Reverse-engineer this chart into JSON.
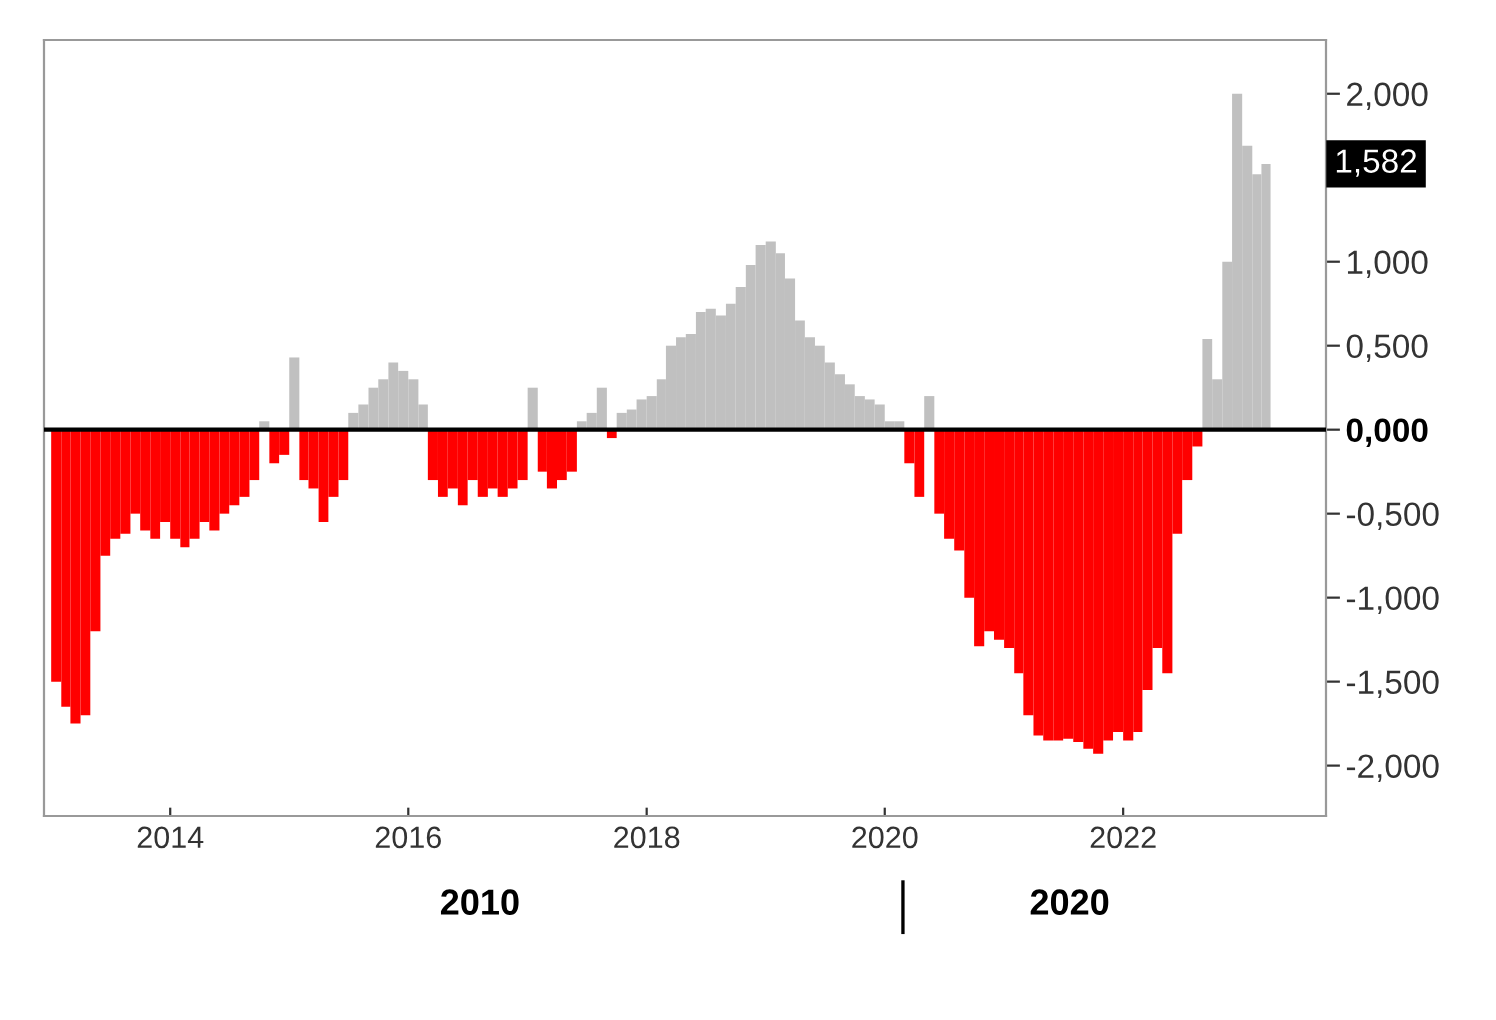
{
  "chart_data": {
    "type": "bar",
    "x": [
      "2013-01",
      "2013-02",
      "2013-03",
      "2013-04",
      "2013-05",
      "2013-06",
      "2013-07",
      "2013-08",
      "2013-09",
      "2013-10",
      "2013-11",
      "2013-12",
      "2014-01",
      "2014-02",
      "2014-03",
      "2014-04",
      "2014-05",
      "2014-06",
      "2014-07",
      "2014-08",
      "2014-09",
      "2014-10",
      "2014-11",
      "2014-12",
      "2015-01",
      "2015-02",
      "2015-03",
      "2015-04",
      "2015-05",
      "2015-06",
      "2015-07",
      "2015-08",
      "2015-09",
      "2015-10",
      "2015-11",
      "2015-12",
      "2016-01",
      "2016-02",
      "2016-03",
      "2016-04",
      "2016-05",
      "2016-06",
      "2016-07",
      "2016-08",
      "2016-09",
      "2016-10",
      "2016-11",
      "2016-12",
      "2017-01",
      "2017-02",
      "2017-03",
      "2017-04",
      "2017-05",
      "2017-06",
      "2017-07",
      "2017-08",
      "2017-09",
      "2017-10",
      "2017-11",
      "2017-12",
      "2018-01",
      "2018-02",
      "2018-03",
      "2018-04",
      "2018-05",
      "2018-06",
      "2018-07",
      "2018-08",
      "2018-09",
      "2018-10",
      "2018-11",
      "2018-12",
      "2019-01",
      "2019-02",
      "2019-03",
      "2019-04",
      "2019-05",
      "2019-06",
      "2019-07",
      "2019-08",
      "2019-09",
      "2019-10",
      "2019-11",
      "2019-12",
      "2020-01",
      "2020-02",
      "2020-03",
      "2020-04",
      "2020-05",
      "2020-06",
      "2020-07",
      "2020-08",
      "2020-09",
      "2020-10",
      "2020-11",
      "2020-12",
      "2021-01",
      "2021-02",
      "2021-03",
      "2021-04",
      "2021-05",
      "2021-06",
      "2021-07",
      "2021-08",
      "2021-09",
      "2021-10",
      "2021-11",
      "2021-12",
      "2022-01",
      "2022-02",
      "2022-03",
      "2022-04",
      "2022-05",
      "2022-06",
      "2022-07",
      "2022-08",
      "2022-09",
      "2022-10",
      "2022-11",
      "2022-12",
      "2023-01",
      "2023-02",
      "2023-03"
    ],
    "values": [
      -1.5,
      -1.65,
      -1.75,
      -1.7,
      -1.2,
      -0.75,
      -0.65,
      -0.62,
      -0.5,
      -0.6,
      -0.65,
      -0.55,
      -0.65,
      -0.7,
      -0.65,
      -0.55,
      -0.6,
      -0.5,
      -0.45,
      -0.4,
      -0.3,
      0.05,
      -0.2,
      -0.15,
      0.43,
      -0.3,
      -0.35,
      -0.55,
      -0.4,
      -0.3,
      0.1,
      0.15,
      0.25,
      0.3,
      0.4,
      0.35,
      0.3,
      0.15,
      -0.3,
      -0.4,
      -0.35,
      -0.45,
      -0.3,
      -0.4,
      -0.35,
      -0.4,
      -0.35,
      -0.3,
      0.25,
      -0.25,
      -0.35,
      -0.3,
      -0.25,
      0.05,
      0.1,
      0.25,
      -0.05,
      0.1,
      0.12,
      0.18,
      0.2,
      0.3,
      0.5,
      0.55,
      0.57,
      0.7,
      0.72,
      0.68,
      0.75,
      0.85,
      0.98,
      1.1,
      1.12,
      1.05,
      0.9,
      0.65,
      0.55,
      0.5,
      0.4,
      0.33,
      0.27,
      0.2,
      0.18,
      0.15,
      0.05,
      0.05,
      -0.2,
      -0.4,
      0.2,
      -0.5,
      -0.65,
      -0.72,
      -1.0,
      -1.29,
      -1.2,
      -1.25,
      -1.3,
      -1.45,
      -1.7,
      -1.82,
      -1.85,
      -1.85,
      -1.84,
      -1.86,
      -1.9,
      -1.93,
      -1.85,
      -1.8,
      -1.85,
      -1.8,
      -1.55,
      -1.3,
      -1.45,
      -0.62,
      -0.3,
      -0.1,
      0.54,
      0.3,
      1.0,
      2.0,
      1.69,
      1.52,
      1.582
    ],
    "colors": [
      "#ff0000",
      "#ff0000",
      "#ff0000",
      "#ff0000",
      "#ff0000",
      "#ff0000",
      "#ff0000",
      "#ff0000",
      "#ff0000",
      "#ff0000",
      "#ff0000",
      "#ff0000",
      "#ff0000",
      "#ff0000",
      "#ff0000",
      "#ff0000",
      "#ff0000",
      "#ff0000",
      "#ff0000",
      "#ff0000",
      "#ff0000",
      "#c0c0c0",
      "#ff0000",
      "#ff0000",
      "#c0c0c0",
      "#ff0000",
      "#ff0000",
      "#ff0000",
      "#ff0000",
      "#ff0000",
      "#c0c0c0",
      "#c0c0c0",
      "#c0c0c0",
      "#c0c0c0",
      "#c0c0c0",
      "#c0c0c0",
      "#c0c0c0",
      "#c0c0c0",
      "#ff0000",
      "#ff0000",
      "#ff0000",
      "#ff0000",
      "#ff0000",
      "#ff0000",
      "#ff0000",
      "#ff0000",
      "#ff0000",
      "#ff0000",
      "#c0c0c0",
      "#ff0000",
      "#ff0000",
      "#ff0000",
      "#ff0000",
      "#c0c0c0",
      "#c0c0c0",
      "#c0c0c0",
      "#ff0000",
      "#c0c0c0",
      "#c0c0c0",
      "#c0c0c0",
      "#c0c0c0",
      "#c0c0c0",
      "#c0c0c0",
      "#c0c0c0",
      "#c0c0c0",
      "#c0c0c0",
      "#c0c0c0",
      "#c0c0c0",
      "#c0c0c0",
      "#c0c0c0",
      "#c0c0c0",
      "#c0c0c0",
      "#c0c0c0",
      "#c0c0c0",
      "#c0c0c0",
      "#c0c0c0",
      "#c0c0c0",
      "#c0c0c0",
      "#c0c0c0",
      "#c0c0c0",
      "#c0c0c0",
      "#c0c0c0",
      "#c0c0c0",
      "#c0c0c0",
      "#c0c0c0",
      "#c0c0c0",
      "#ff0000",
      "#ff0000",
      "#c0c0c0",
      "#ff0000",
      "#ff0000",
      "#ff0000",
      "#ff0000",
      "#ff0000",
      "#ff0000",
      "#ff0000",
      "#ff0000",
      "#ff0000",
      "#ff0000",
      "#ff0000",
      "#ff0000",
      "#ff0000",
      "#ff0000",
      "#ff0000",
      "#ff0000",
      "#ff0000",
      "#ff0000",
      "#ff0000",
      "#ff0000",
      "#ff0000",
      "#ff0000",
      "#ff0000",
      "#ff0000",
      "#ff0000",
      "#ff0000",
      "#ff0000",
      "#c0c0c0",
      "#c0c0c0",
      "#c0c0c0",
      "#c0c0c0",
      "#c0c0c0",
      "#c0c0c0",
      "#c0c0c0"
    ],
    "xlim": [
      "2012-12-10",
      "2023-09-15"
    ],
    "xticks": [
      {
        "value": "2014-01-01",
        "label": "2014"
      },
      {
        "value": "2016-01-01",
        "label": "2016"
      },
      {
        "value": "2018-01-01",
        "label": "2018"
      },
      {
        "value": "2020-01-01",
        "label": "2020"
      },
      {
        "value": "2022-01-01",
        "label": "2022"
      }
    ],
    "ylim": [
      -2.3,
      2.32
    ],
    "yticks": [
      {
        "value": -2,
        "label": "-2,000"
      },
      {
        "value": -1.5,
        "label": "-1,500"
      },
      {
        "value": -1,
        "label": "-1,000"
      },
      {
        "value": -0.5,
        "label": "-0,500"
      },
      {
        "value": 0,
        "label": "0,000"
      },
      {
        "value": 0.5,
        "label": "0,500"
      },
      {
        "value": 1,
        "label": "1,000"
      },
      {
        "value": 2,
        "label": "2,000"
      }
    ],
    "ref_lines": [
      {
        "axis": "y",
        "value": 0,
        "color": "#000000"
      }
    ],
    "annotations": [
      "1,582",
      "2010",
      "2020"
    ],
    "grid": false,
    "legend": false
  }
}
